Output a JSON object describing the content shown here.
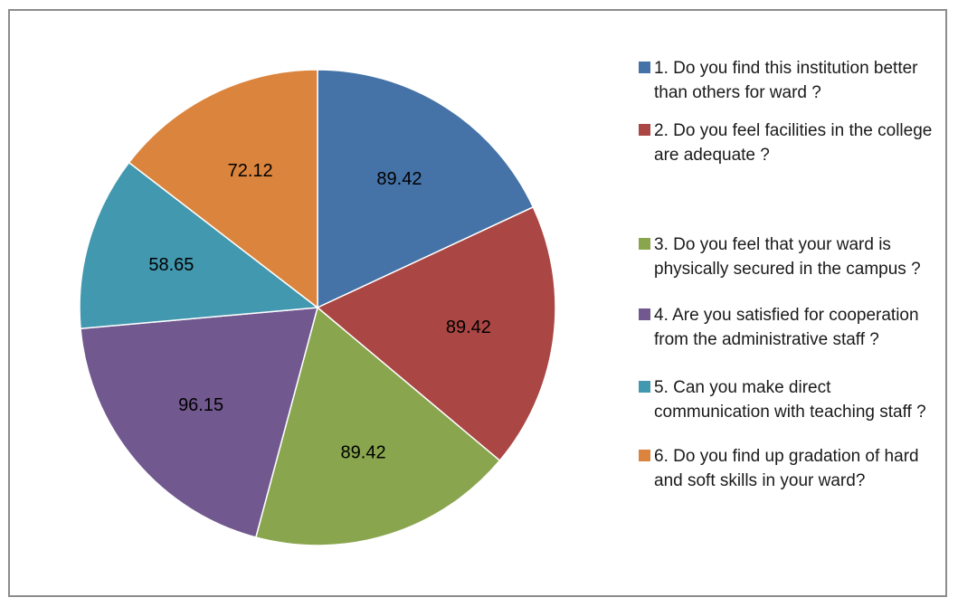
{
  "chart_data": {
    "type": "pie",
    "values": [
      89.42,
      89.42,
      89.42,
      96.15,
      58.65,
      72.12
    ],
    "data_labels": [
      "89.42",
      "89.42",
      "89.42",
      "96.15",
      "58.65",
      "72.12"
    ],
    "legend": [
      "1. Do you find this institution better than others for ward ?",
      "2. Do you feel facilities in the college are adequate ?",
      "3. Do you feel that your ward is physically secured in the campus ?",
      "4. Are you satisfied for cooperation from the administrative staff ?",
      "5. Can you make direct communication with teaching staff ?",
      "6. Do you find up gradation of hard and soft skills in your ward?"
    ],
    "colors": [
      "#4573a7",
      "#aa4643",
      "#89a54e",
      "#71588f",
      "#4298af",
      "#db843d"
    ],
    "legend_placement": "right",
    "start_angle": "12 o'clock, clockwise"
  }
}
